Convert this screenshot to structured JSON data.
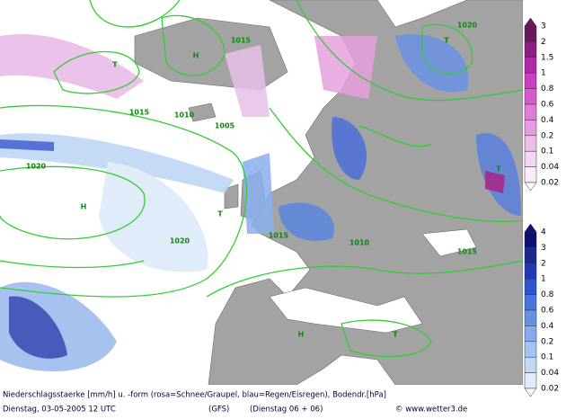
{
  "caption": {
    "title": "Niederschlagsstaerke [mm/h] u. -form (rosa=Schnee/Graupel, blau=Regen/Eisregen), Bodendr.[hPa]",
    "date": "Dienstag, 03-05-2005   12 UTC",
    "model": "(GFS)",
    "run": "(Dienstag 06 + 06)",
    "source": "© www.wetter3.de"
  },
  "legend_snow": {
    "labels": [
      "3",
      "2",
      "1.5",
      "1",
      "0.8",
      "0.6",
      "0.4",
      "0.2",
      "0.1",
      "0.04",
      "0.02"
    ]
  },
  "legend_rain": {
    "labels": [
      "4",
      "3",
      "2",
      "1",
      "0.8",
      "0.6",
      "0.4",
      "0.2",
      "0.1",
      "0.04",
      "0.02"
    ]
  },
  "map": {
    "labels": [
      "H",
      "H",
      "T",
      "T",
      "T",
      "T",
      "H",
      "T",
      "1015",
      "1020",
      "1020",
      "1010",
      "1015",
      "1005",
      "1015",
      "1010",
      "1015",
      "1020"
    ]
  }
}
